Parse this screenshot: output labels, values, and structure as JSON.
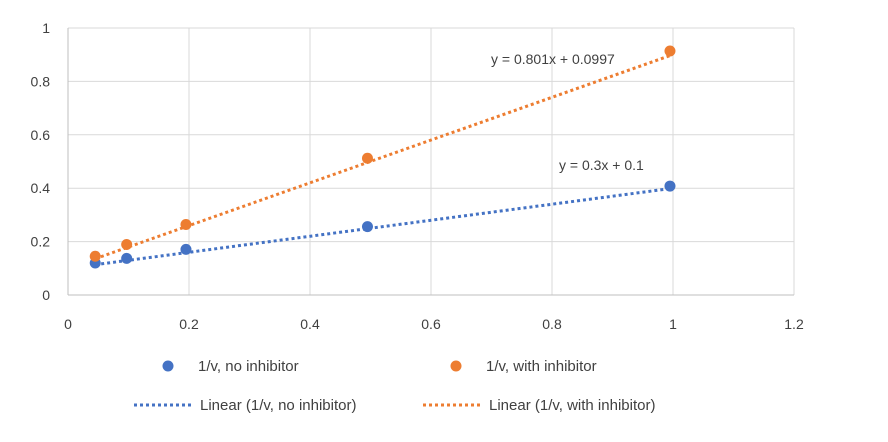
{
  "chart_data": {
    "type": "scatter",
    "xlim": [
      0,
      1.2
    ],
    "ylim": [
      0,
      1
    ],
    "x_ticks": [
      "0",
      "0.2",
      "0.4",
      "0.6",
      "0.8",
      "1",
      "1.2"
    ],
    "y_ticks": [
      "0",
      "0.2",
      "0.4",
      "0.6",
      "0.8",
      "1"
    ],
    "grid": true,
    "legend_position": "bottom",
    "series": [
      {
        "name": "1/v, no inhibitor",
        "color": "#4472C4",
        "x": [
          0.045,
          0.097,
          0.195,
          0.495,
          0.995
        ],
        "y": [
          0.12,
          0.137,
          0.171,
          0.256,
          0.408
        ]
      },
      {
        "name": "1/v, with inhibitor",
        "color": "#ED7D31",
        "x": [
          0.045,
          0.097,
          0.195,
          0.495,
          0.995
        ],
        "y": [
          0.145,
          0.189,
          0.264,
          0.512,
          0.914
        ]
      }
    ],
    "trendlines": [
      {
        "name": "Linear (1/v, no inhibitor)",
        "color": "#4472C4",
        "slope": 0.3,
        "intercept": 0.1,
        "x_range": [
          0.045,
          0.995
        ],
        "equation": "y = 0.3x + 0.1"
      },
      {
        "name": "Linear (1/v, with inhibitor)",
        "color": "#ED7D31",
        "slope": 0.801,
        "intercept": 0.0997,
        "x_range": [
          0.045,
          0.995
        ],
        "equation": "y = 0.801x + 0.0997"
      }
    ]
  }
}
